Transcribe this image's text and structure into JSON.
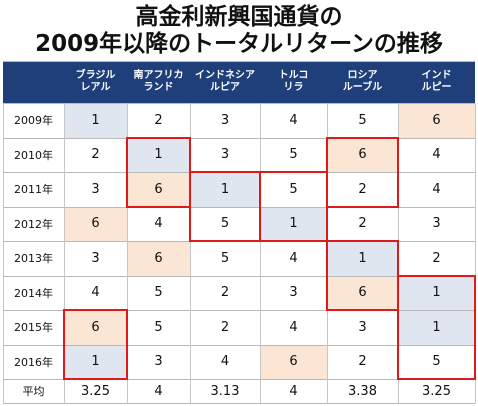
{
  "title_line1": "高金利新興国通貨の",
  "title_line2": "2009年以降のトータルリターンの推移",
  "colors": {
    "header_bg": "#1f3f7a",
    "blue_cell": "#dfe6ef",
    "peach_cell": "#fbe6d6",
    "highlight_border": "#e01a1a"
  },
  "chart_data": {
    "type": "table",
    "columns": [
      "ブラジル\nレアル",
      "南アフリカ\nランド",
      "インドネシア\nルピア",
      "トルコ\nリラ",
      "ロシア\nルーブル",
      "インド\nルピー"
    ],
    "rows": [
      {
        "label": "2009年",
        "values": [
          1,
          2,
          3,
          4,
          5,
          6
        ]
      },
      {
        "label": "2010年",
        "values": [
          2,
          1,
          3,
          5,
          6,
          4
        ]
      },
      {
        "label": "2011年",
        "values": [
          3,
          6,
          1,
          5,
          2,
          4
        ]
      },
      {
        "label": "2012年",
        "values": [
          6,
          4,
          5,
          1,
          2,
          3
        ]
      },
      {
        "label": "2013年",
        "values": [
          3,
          6,
          5,
          4,
          1,
          2
        ]
      },
      {
        "label": "2014年",
        "values": [
          4,
          5,
          2,
          3,
          6,
          1
        ]
      },
      {
        "label": "2015年",
        "values": [
          6,
          5,
          2,
          4,
          3,
          1
        ]
      },
      {
        "label": "2016年",
        "values": [
          1,
          3,
          4,
          6,
          2,
          5
        ]
      }
    ],
    "average": {
      "label": "平均",
      "values": [
        "3.25",
        "4",
        "3.13",
        "4",
        "3.38",
        "3.25"
      ]
    },
    "cell_shading": [
      [
        "blue",
        "",
        "",
        "",
        "",
        "peach"
      ],
      [
        "",
        "blue",
        "",
        "",
        "peach",
        ""
      ],
      [
        "",
        "peach",
        "blue",
        "",
        "",
        ""
      ],
      [
        "peach",
        "",
        "",
        "blue",
        "",
        ""
      ],
      [
        "",
        "peach",
        "",
        "",
        "blue",
        ""
      ],
      [
        "",
        "",
        "",
        "",
        "peach",
        "blue"
      ],
      [
        "peach",
        "",
        "",
        "",
        "",
        "blue"
      ],
      [
        "blue",
        "",
        "",
        "peach",
        "",
        ""
      ]
    ],
    "highlight_boxes": [
      {
        "rows": [
          1,
          2
        ],
        "col": 1
      },
      {
        "rows": [
          2,
          3
        ],
        "col": 2
      },
      {
        "rows": [
          2,
          3
        ],
        "col": 3
      },
      {
        "rows": [
          1,
          2
        ],
        "col": 4
      },
      {
        "rows": [
          4,
          5
        ],
        "col": 4
      },
      {
        "rows": [
          5,
          7
        ],
        "col": 5
      },
      {
        "rows": [
          6,
          7
        ],
        "col": 0
      }
    ]
  }
}
